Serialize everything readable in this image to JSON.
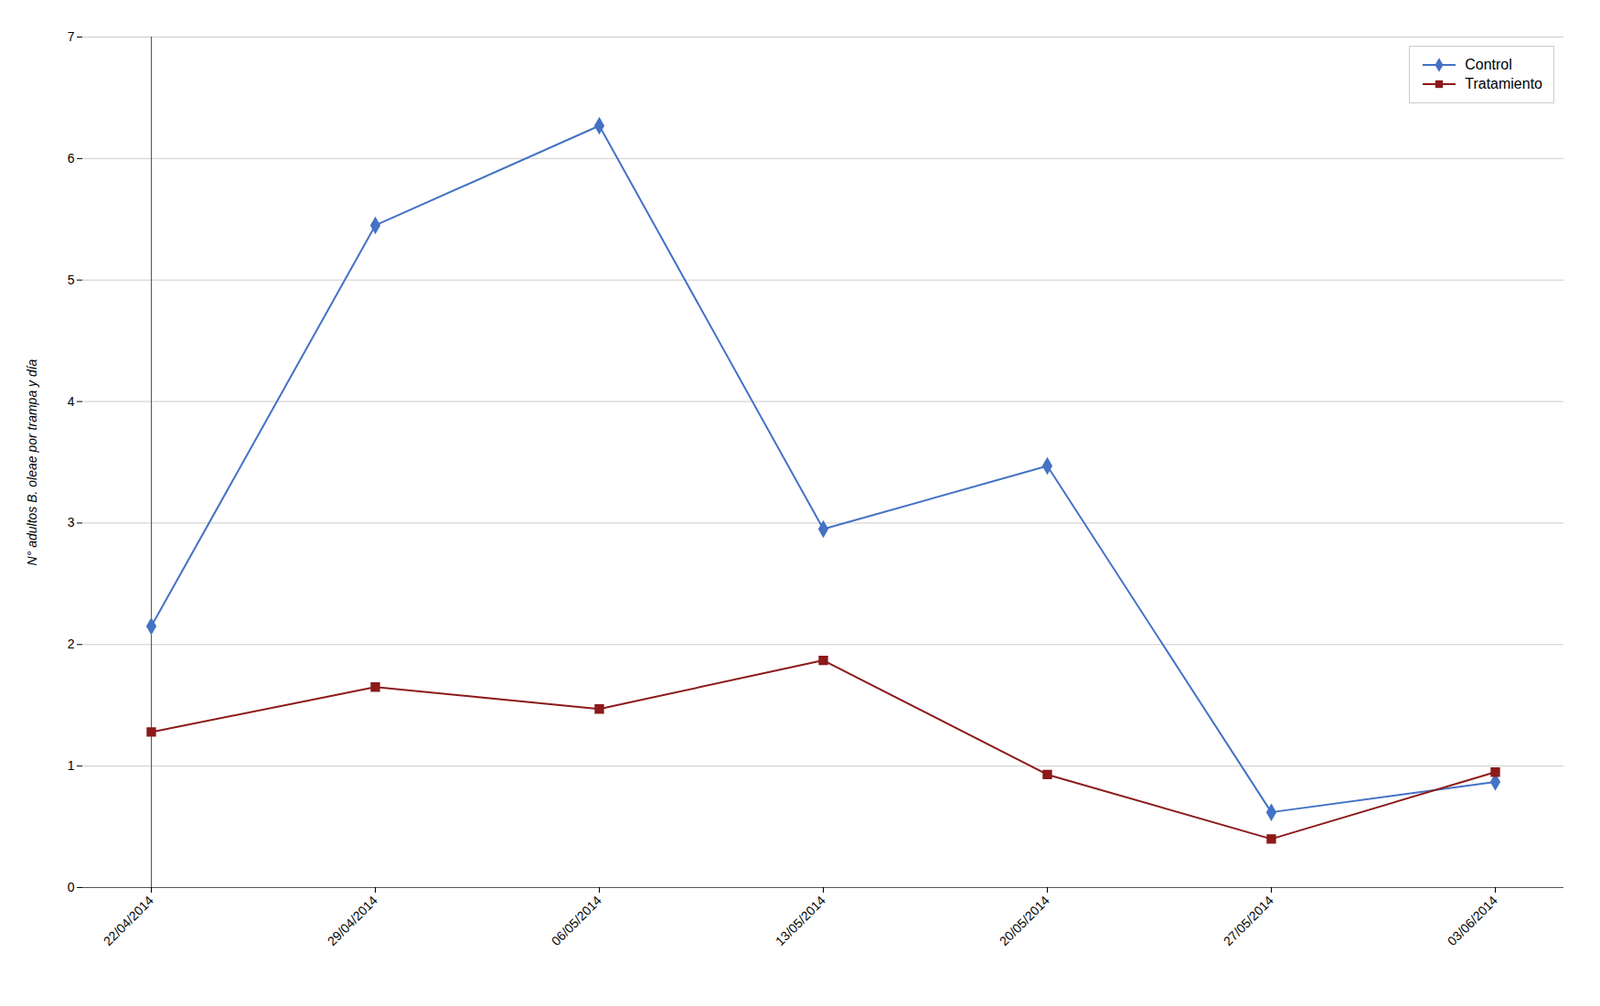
{
  "chart_data": {
    "type": "line",
    "categories": [
      "22/04/2014",
      "29/04/2014",
      "06/05/2014",
      "13/05/2014",
      "20/05/2014",
      "27/05/2014",
      "03/06/2014"
    ],
    "series": [
      {
        "name": "Control",
        "color": "#4472C4",
        "marker": "diamond",
        "values": [
          2.15,
          5.45,
          6.27,
          2.95,
          3.47,
          0.62,
          0.87
        ]
      },
      {
        "name": "Tratamiento",
        "color": "#8B1A1A",
        "marker": "square",
        "values": [
          1.28,
          1.65,
          1.47,
          1.87,
          0.93,
          0.4,
          0.95
        ]
      }
    ],
    "ylabel": "N° adultos B. oleae por trampa y día",
    "ylim": [
      0,
      7
    ],
    "yticks": [
      0,
      1,
      2,
      3,
      4,
      5,
      6,
      7
    ],
    "grid": true,
    "legend": "upper right"
  }
}
